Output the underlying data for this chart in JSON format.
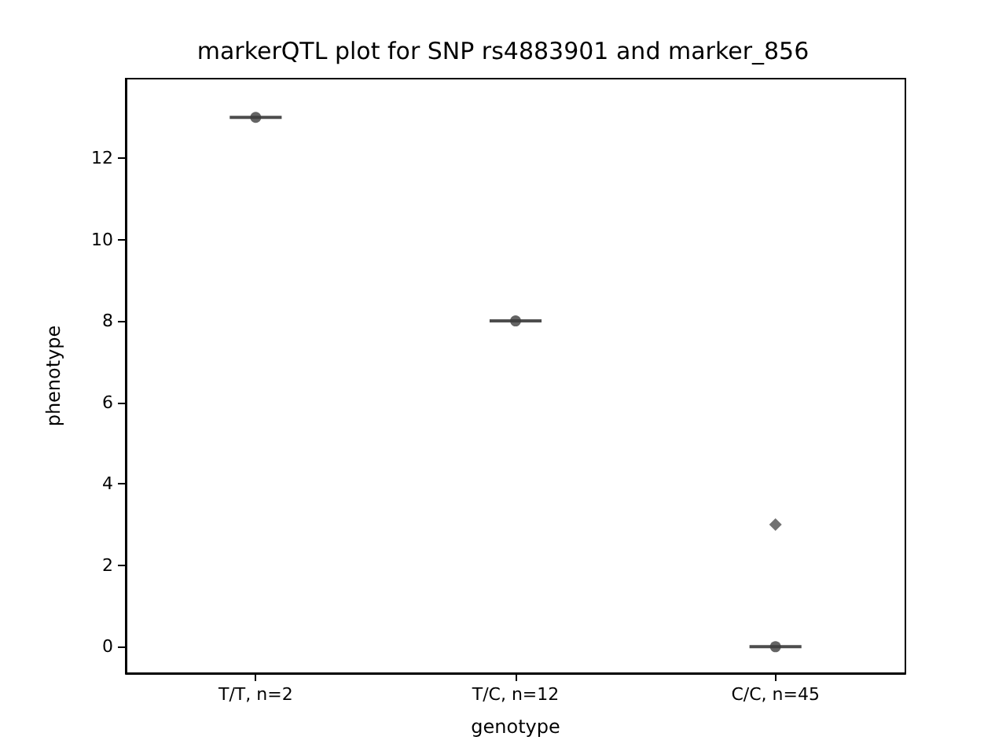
{
  "chart_data": {
    "type": "box",
    "title": "markerQTL plot for SNP rs4883901 and marker_856",
    "xlabel": "genotype",
    "ylabel": "phenotype",
    "categories": [
      "T/T, n=2",
      "T/C, n=12",
      "C/C, n=45"
    ],
    "boxes": [
      {
        "low": 13,
        "q1": 13,
        "median": 13,
        "q3": 13,
        "high": 13
      },
      {
        "low": 8,
        "q1": 8,
        "median": 8,
        "q3": 8,
        "high": 8
      },
      {
        "low": 0,
        "q1": 0,
        "median": 0,
        "q3": 0,
        "high": 0,
        "outliers": [
          3
        ]
      }
    ],
    "color": "#4d4d4d",
    "series": [
      {
        "type": "scatter",
        "color": "#3d3d3d",
        "marker": "circle",
        "x": [
          "T/T, n=2",
          "T/C, n=12",
          "C/C, n=45"
        ],
        "values": [
          13,
          8,
          0
        ]
      }
    ],
    "ylim": [
      -0.65,
      13.95
    ],
    "yticks": [
      0,
      2,
      4,
      6,
      8,
      10,
      12
    ],
    "grid": false
  }
}
